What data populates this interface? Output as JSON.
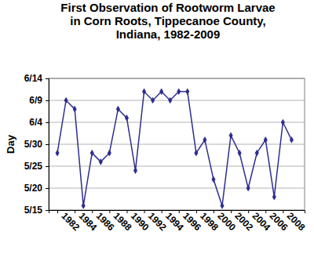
{
  "chart_data": {
    "type": "line",
    "title": [
      "First Observation of Rootworm Larvae",
      "in Corn Roots, Tippecanoe County,",
      "Indiana, 1982-2009"
    ],
    "y_label": "Day",
    "x": [
      1982,
      1983,
      1984,
      1985,
      1986,
      1987,
      1988,
      1989,
      1990,
      1991,
      1992,
      1993,
      1994,
      1995,
      1996,
      1997,
      1998,
      1999,
      2000,
      2001,
      2002,
      2003,
      2004,
      2005,
      2006,
      2007,
      2008,
      2009
    ],
    "values": [
      148,
      160,
      158,
      136,
      148,
      146,
      148,
      158,
      156,
      144,
      162,
      160,
      162,
      160,
      162,
      162,
      148,
      151,
      142,
      136,
      152,
      148,
      140,
      148,
      151,
      138,
      155,
      151
    ],
    "color": "#2e2e8f",
    "marker": "diamond",
    "xlim": [
      1981,
      2010.5
    ],
    "xticks": [
      1982,
      1984,
      1986,
      1988,
      1990,
      1992,
      1994,
      1996,
      1998,
      2000,
      2002,
      2004,
      2006,
      2008
    ],
    "ylim": [
      135,
      165
    ],
    "yticks": [
      {
        "value": 135,
        "label": "5/15"
      },
      {
        "value": 140,
        "label": "5/20"
      },
      {
        "value": 145,
        "label": "5/25"
      },
      {
        "value": 150,
        "label": "5/30"
      },
      {
        "value": 155,
        "label": "6/4"
      },
      {
        "value": 160,
        "label": "6/9"
      },
      {
        "value": 165,
        "label": "6/14"
      }
    ],
    "grid": true
  }
}
